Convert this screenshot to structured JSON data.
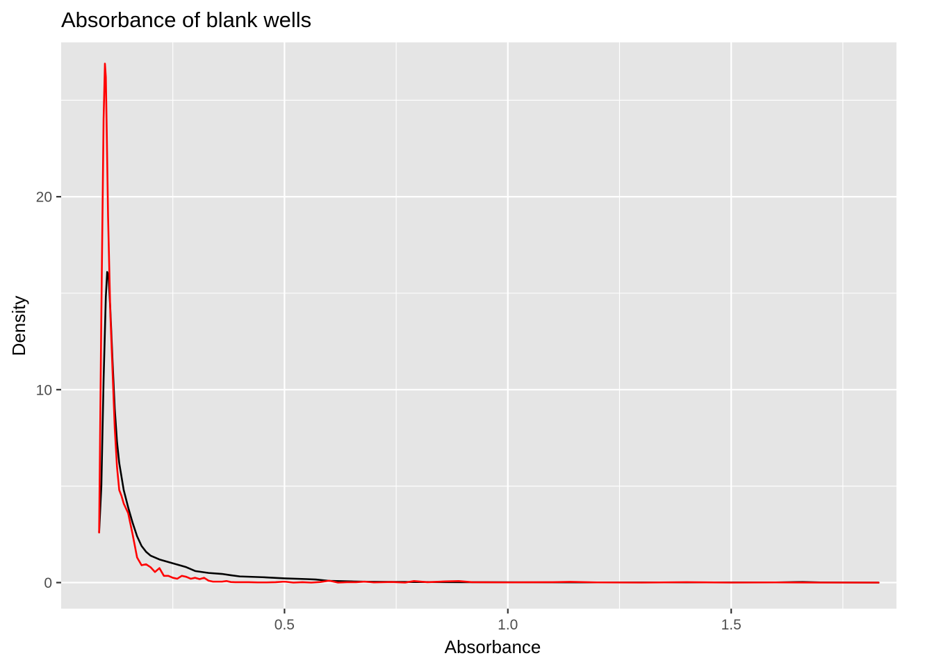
{
  "chart_data": {
    "type": "line",
    "title": "Absorbance of blank wells",
    "xlabel": "Absorbance",
    "ylabel": "Density",
    "xlim": [
      0.0,
      1.87
    ],
    "ylim": [
      -1.35,
      28.0
    ],
    "x_ticks": [
      0.5,
      1.0,
      1.5
    ],
    "x_tick_labels": [
      "0.5",
      "1.0",
      "1.5"
    ],
    "x_minor_ticks": [
      0.25,
      0.75,
      1.25,
      1.75
    ],
    "y_ticks": [
      0,
      10,
      20
    ],
    "y_tick_labels": [
      "0",
      "10",
      "20"
    ],
    "y_minor_ticks": [
      5,
      15,
      25
    ],
    "grid": true,
    "legend": "none",
    "background": "#e5e5e5",
    "series": [
      {
        "color": "#000000",
        "x": [
          0.085,
          0.09,
          0.095,
          0.1,
          0.103,
          0.106,
          0.11,
          0.115,
          0.12,
          0.125,
          0.13,
          0.14,
          0.15,
          0.16,
          0.17,
          0.18,
          0.19,
          0.2,
          0.22,
          0.25,
          0.28,
          0.3,
          0.33,
          0.36,
          0.38,
          0.4,
          0.45,
          0.5,
          0.55,
          0.57,
          0.6,
          0.65,
          0.7,
          0.8,
          0.9,
          1.0,
          1.2,
          1.4,
          1.6,
          1.66,
          1.7,
          1.83
        ],
        "y": [
          2.6,
          5.0,
          10.5,
          14.8,
          16.1,
          15.9,
          14.2,
          11.5,
          9.0,
          7.3,
          6.2,
          4.8,
          3.9,
          3.1,
          2.4,
          1.9,
          1.6,
          1.4,
          1.2,
          1.0,
          0.8,
          0.6,
          0.5,
          0.45,
          0.38,
          0.32,
          0.28,
          0.22,
          0.18,
          0.16,
          0.09,
          0.06,
          0.04,
          0.03,
          0.02,
          0.015,
          0.01,
          0.01,
          0.01,
          0.03,
          0.01,
          0.0
        ]
      },
      {
        "color": "#ff0000",
        "x": [
          0.085,
          0.09,
          0.095,
          0.098,
          0.1,
          0.102,
          0.105,
          0.11,
          0.115,
          0.12,
          0.125,
          0.13,
          0.135,
          0.14,
          0.15,
          0.16,
          0.17,
          0.18,
          0.19,
          0.2,
          0.21,
          0.22,
          0.23,
          0.24,
          0.25,
          0.26,
          0.27,
          0.28,
          0.29,
          0.3,
          0.31,
          0.32,
          0.33,
          0.34,
          0.35,
          0.36,
          0.37,
          0.38,
          0.39,
          0.4,
          0.42,
          0.44,
          0.46,
          0.48,
          0.5,
          0.52,
          0.54,
          0.56,
          0.58,
          0.6,
          0.62,
          0.64,
          0.66,
          0.68,
          0.7,
          0.74,
          0.77,
          0.79,
          0.82,
          0.86,
          0.89,
          0.92,
          1.0,
          1.1,
          1.14,
          1.2,
          1.3,
          1.4,
          1.5,
          1.6,
          1.7,
          1.8,
          1.83
        ],
        "y": [
          2.6,
          14.0,
          24.0,
          26.9,
          26.2,
          23.5,
          19.0,
          14.0,
          11.0,
          8.0,
          6.0,
          4.8,
          4.5,
          4.1,
          3.6,
          2.5,
          1.3,
          0.9,
          0.95,
          0.8,
          0.55,
          0.75,
          0.35,
          0.35,
          0.25,
          0.2,
          0.35,
          0.3,
          0.2,
          0.25,
          0.18,
          0.25,
          0.1,
          0.05,
          0.05,
          0.05,
          0.08,
          0.03,
          0.02,
          0.02,
          0.02,
          0.01,
          0.01,
          0.02,
          0.05,
          0.0,
          0.02,
          0.0,
          0.03,
          0.1,
          0.0,
          0.02,
          0.02,
          0.05,
          0.01,
          0.03,
          0.0,
          0.08,
          0.02,
          0.06,
          0.08,
          0.02,
          0.01,
          0.02,
          0.04,
          0.01,
          0.0,
          0.02,
          0.0,
          0.01,
          0.0,
          0.0,
          0.0
        ]
      }
    ]
  }
}
